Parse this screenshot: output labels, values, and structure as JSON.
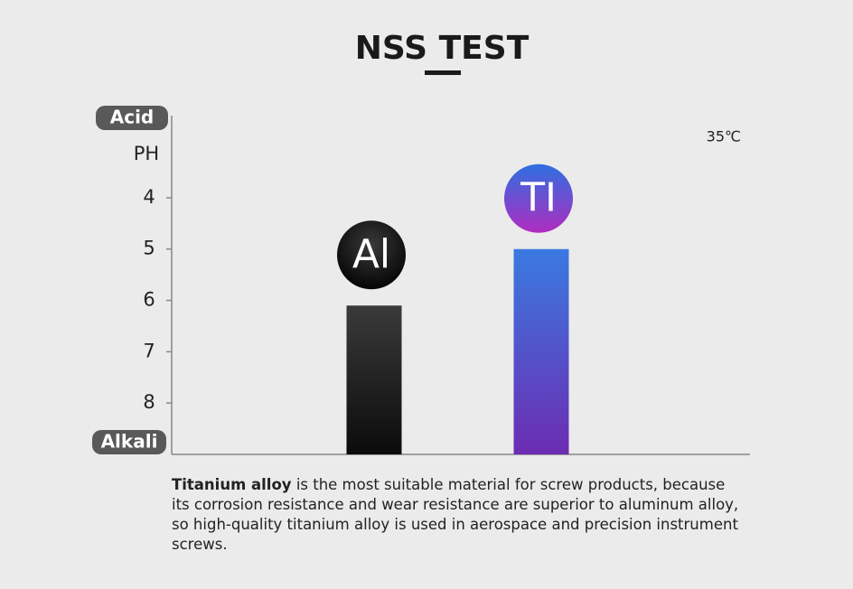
{
  "chart_data": {
    "type": "bar",
    "title": "NSS TEST",
    "y_label_top": "Acid",
    "y_label_bottom": "Alkali",
    "y_label": "PH",
    "annotation": "35℃",
    "categories": [
      "Al",
      "TI"
    ],
    "values": [
      6.1,
      5.0
    ],
    "colors": [
      [
        "#3a3a3a",
        "#0b0b0b"
      ],
      [
        "#3a7ae0",
        "#6c2cb2"
      ]
    ],
    "ylim": [
      9,
      2.4
    ],
    "yticks": [
      4,
      5,
      6,
      7,
      8
    ],
    "caption_bold": "Titanium alloy",
    "caption": "is the most suitable material for screw products, because its corrosion resistance and wear resistance are superior to aluminum alloy, so high-quality titanium alloy is used in aerospace and precision instrument screws."
  }
}
